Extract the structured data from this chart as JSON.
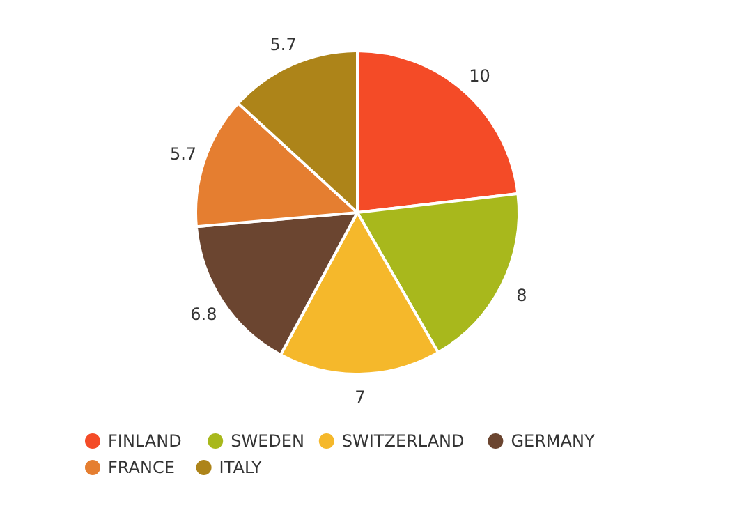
{
  "chart_data": {
    "type": "pie",
    "categories": [
      "FINLAND",
      "SWEDEN",
      "SWITZERLAND",
      "GERMANY",
      "FRANCE",
      "ITALY"
    ],
    "values": [
      10,
      8,
      7,
      6.8,
      5.7,
      5.7
    ],
    "colors": [
      "#f44b27",
      "#a8b81c",
      "#f5b82b",
      "#6b4530",
      "#e57e30",
      "#ad8419"
    ],
    "data_labels": true,
    "legend": "bottom"
  }
}
